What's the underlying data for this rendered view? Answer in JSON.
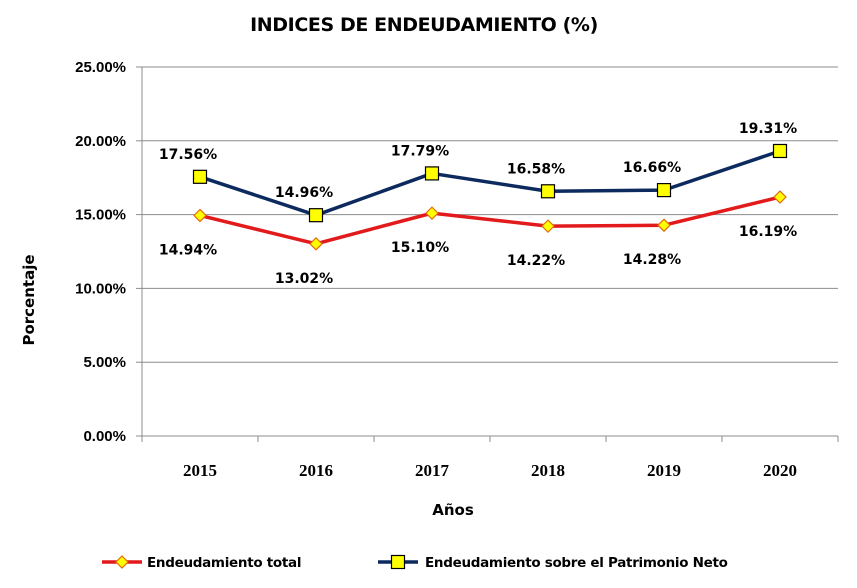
{
  "chart_data": {
    "type": "line",
    "title": "INDICES DE ENDEUDAMIENTO (%)",
    "xlabel": "Años",
    "ylabel": "Porcentaje",
    "categories": [
      "2015",
      "2016",
      "2017",
      "2018",
      "2019",
      "2020"
    ],
    "ylim": [
      0,
      25
    ],
    "yticks": [
      "0.00%",
      "5.00%",
      "10.00%",
      "15.00%",
      "20.00%",
      "25.00%"
    ],
    "grid": true,
    "legend_position": "bottom",
    "series": [
      {
        "name": "Endeudamiento total",
        "values": [
          14.94,
          13.02,
          15.1,
          14.22,
          14.28,
          16.19
        ],
        "labels": [
          "14.94%",
          "13.02%",
          "15.10%",
          "14.22%",
          "14.28%",
          "16.19%"
        ],
        "color": "#e31a1c",
        "marker": "diamond",
        "marker_color": "#ffff00"
      },
      {
        "name": "Endeudamiento sobre el Patrimonio Neto",
        "values": [
          17.56,
          14.96,
          17.79,
          16.58,
          16.66,
          19.31
        ],
        "labels": [
          "17.56%",
          "14.96%",
          "17.79%",
          "16.58%",
          "16.66%",
          "19.31%"
        ],
        "color": "#0d2a5e",
        "marker": "square",
        "marker_color": "#ffff00"
      }
    ]
  }
}
